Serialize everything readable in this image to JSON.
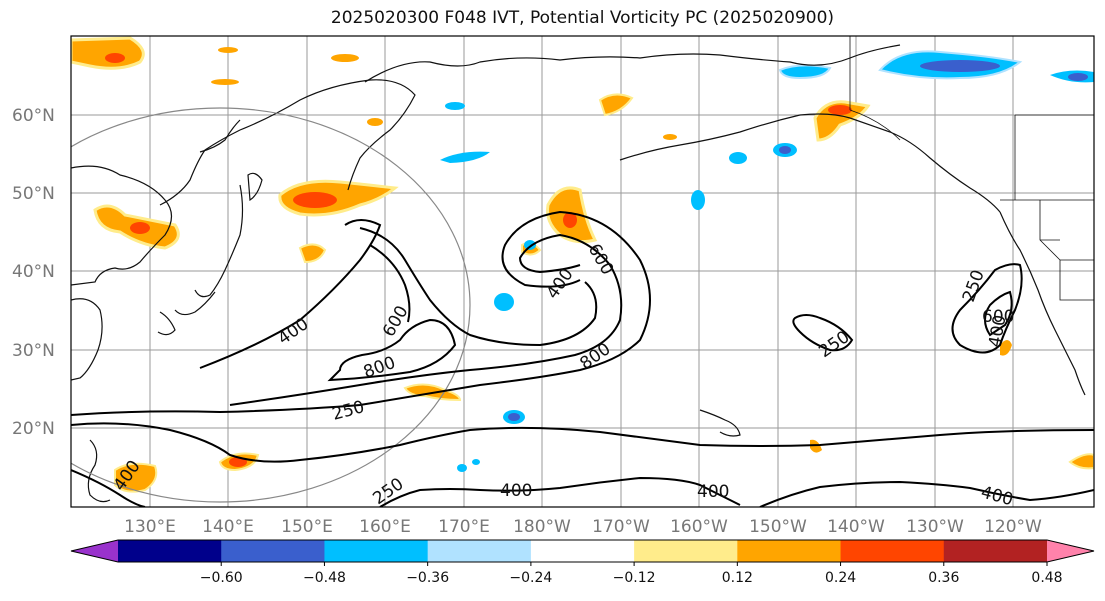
{
  "title": "2025020300 F048 IVT, Potential Vorticity PC (2025020900)",
  "lat_labels": [
    "60°N",
    "50°N",
    "40°N",
    "30°N",
    "20°N"
  ],
  "lon_labels": [
    "130°E",
    "140°E",
    "150°E",
    "160°E",
    "170°E",
    "180°W",
    "170°W",
    "160°W",
    "150°W",
    "140°W",
    "130°W",
    "120°W"
  ],
  "contour_labels": {
    "c400_left": "400",
    "c600_left": "600",
    "c800_left": "800",
    "c250_left": "250",
    "c400_mid": "400",
    "c600_mid": "600",
    "c800_mid": "800",
    "c250_mid": "250",
    "c250_right": "250",
    "c600_right": "600",
    "c400_right": "400",
    "c400_b1": "400",
    "c400_b2": "400",
    "c400_b3": "400",
    "c400_b4": "400",
    "c250_b": "250"
  },
  "colorbar": {
    "ticks": [
      "−0.60",
      "−0.48",
      "−0.36",
      "−0.24",
      "−0.12",
      "0.12",
      "0.24",
      "0.36",
      "0.48",
      "0.60"
    ],
    "colors": [
      "#9932cc",
      "#00008b",
      "#3a5fcd",
      "#00bfff",
      "#b0e2ff",
      "#ffffff",
      "#ffec8b",
      "#ffa500",
      "#ff4500",
      "#b22222",
      "#ff82ab"
    ]
  }
}
